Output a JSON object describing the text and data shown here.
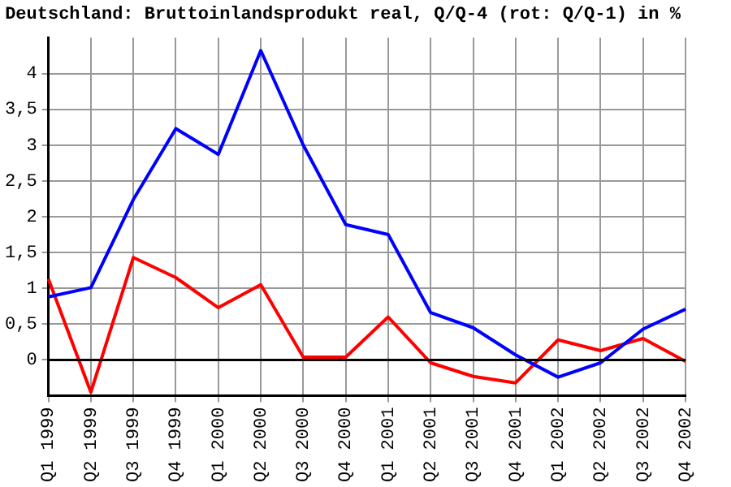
{
  "chart_data": {
    "type": "line",
    "title": "Deutschland: Bruttoinlandsprodukt real, Q/Q-4 (rot: Q/Q-1) in %",
    "categories": [
      "Q1 1999",
      "Q2 1999",
      "Q3 1999",
      "Q4 1999",
      "Q1 2000",
      "Q2 2000",
      "Q3 2000",
      "Q4 2000",
      "Q1 2001",
      "Q2 2001",
      "Q3 2001",
      "Q4 2001",
      "Q1 2002",
      "Q2 2002",
      "Q3 2002",
      "Q4 2002"
    ],
    "series": [
      {
        "color": "#0000ff",
        "values": [
          0.88,
          1.01,
          2.24,
          3.23,
          2.87,
          4.32,
          3.0,
          1.89,
          1.75,
          0.66,
          0.45,
          0.07,
          -0.24,
          -0.04,
          0.43,
          0.71
        ]
      },
      {
        "color": "#ff0000",
        "values": [
          1.13,
          -0.45,
          1.43,
          1.15,
          0.73,
          1.05,
          0.04,
          0.04,
          0.6,
          -0.04,
          -0.23,
          -0.32,
          0.28,
          0.13,
          0.3,
          -0.02
        ]
      }
    ],
    "ylim": [
      -0.5,
      4.5
    ],
    "yticks": [
      0,
      {
        "value": 0.5,
        "label": "0,5"
      },
      1,
      {
        "value": 1.5,
        "label": "1,5"
      },
      2,
      {
        "value": 2.5,
        "label": "2,5"
      },
      3,
      {
        "value": 3.5,
        "label": "3,5"
      },
      4
    ],
    "ref_lines": [
      {
        "axis": "y",
        "value": 0,
        "color": "#000000"
      }
    ],
    "grid": true,
    "legend": false,
    "marker": "none",
    "line_style": "solid"
  }
}
